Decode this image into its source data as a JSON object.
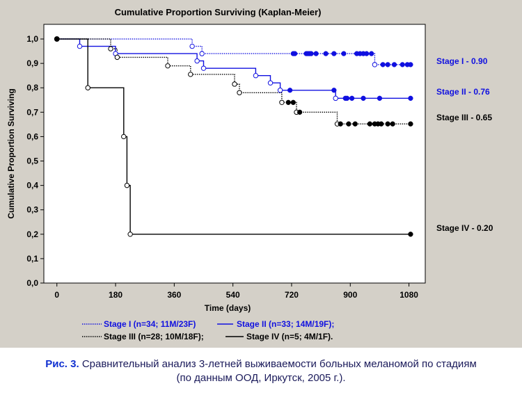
{
  "chart_data": {
    "type": "line",
    "subtype": "kaplan-meier step",
    "title": "Cumulative Proportion Surviving (Kaplan-Meier)",
    "xlabel": "Time (days)",
    "ylabel": "Cumulative Proportion Surviving",
    "xlim": [
      -40,
      1130
    ],
    "ylim": [
      0,
      1.06
    ],
    "x_ticks": [
      "0",
      "180",
      "360",
      "540",
      "720",
      "900",
      "1080"
    ],
    "x_tick_values": [
      0,
      180,
      360,
      540,
      720,
      900,
      1080
    ],
    "y_ticks": [
      "0,0",
      "0,1",
      "0,2",
      "0,3",
      "0,4",
      "0,5",
      "0,6",
      "0,7",
      "0,8",
      "0,9",
      "1,0"
    ],
    "y_tick_values": [
      0,
      0.1,
      0.2,
      0.3,
      0.4,
      0.5,
      0.6,
      0.7,
      0.8,
      0.9,
      1.0
    ],
    "grid": false,
    "legend_position": "bottom",
    "series": [
      {
        "name": "Stage I",
        "legend": "Stage I (n=34; 11M/23F)",
        "end_label": "Stage I - 0.90",
        "color": "#1010e0",
        "dash": "dotted",
        "curve": [
          [
            0,
            1.0
          ],
          [
            415,
            1.0
          ],
          [
            415,
            0.97
          ],
          [
            445,
            0.97
          ],
          [
            445,
            0.94
          ],
          [
            975,
            0.94
          ],
          [
            975,
            0.895
          ],
          [
            1085,
            0.895
          ]
        ],
        "events": [
          [
            415,
            0.97
          ],
          [
            445,
            0.94
          ],
          [
            975,
            0.895
          ]
        ],
        "censored": [
          [
            725,
            0.94
          ],
          [
            730,
            0.94
          ],
          [
            765,
            0.94
          ],
          [
            770,
            0.94
          ],
          [
            775,
            0.94
          ],
          [
            780,
            0.94
          ],
          [
            795,
            0.94
          ],
          [
            825,
            0.94
          ],
          [
            850,
            0.94
          ],
          [
            880,
            0.94
          ],
          [
            920,
            0.94
          ],
          [
            930,
            0.94
          ],
          [
            940,
            0.94
          ],
          [
            950,
            0.94
          ],
          [
            965,
            0.94
          ],
          [
            1000,
            0.895
          ],
          [
            1015,
            0.895
          ],
          [
            1035,
            0.895
          ],
          [
            1060,
            0.895
          ],
          [
            1075,
            0.895
          ],
          [
            1085,
            0.895
          ]
        ]
      },
      {
        "name": "Stage II",
        "legend": "Stage II (n=33; 14M/19F);",
        "end_label": "Stage II - 0.76",
        "color": "#1010e0",
        "dash": "solid",
        "curve": [
          [
            0,
            1.0
          ],
          [
            70,
            1.0
          ],
          [
            70,
            0.97
          ],
          [
            180,
            0.97
          ],
          [
            180,
            0.94
          ],
          [
            430,
            0.94
          ],
          [
            430,
            0.91
          ],
          [
            450,
            0.91
          ],
          [
            450,
            0.88
          ],
          [
            610,
            0.88
          ],
          [
            610,
            0.85
          ],
          [
            655,
            0.85
          ],
          [
            655,
            0.82
          ],
          [
            685,
            0.82
          ],
          [
            685,
            0.79
          ],
          [
            855,
            0.79
          ],
          [
            855,
            0.757
          ],
          [
            1085,
            0.757
          ]
        ],
        "events": [
          [
            70,
            0.97
          ],
          [
            180,
            0.94
          ],
          [
            430,
            0.91
          ],
          [
            450,
            0.88
          ],
          [
            610,
            0.85
          ],
          [
            655,
            0.82
          ],
          [
            685,
            0.79
          ],
          [
            855,
            0.757
          ]
        ],
        "censored": [
          [
            715,
            0.79
          ],
          [
            850,
            0.79
          ],
          [
            885,
            0.757
          ],
          [
            890,
            0.757
          ],
          [
            905,
            0.757
          ],
          [
            940,
            0.757
          ],
          [
            990,
            0.757
          ],
          [
            1085,
            0.757
          ]
        ]
      },
      {
        "name": "Stage III",
        "legend": "Stage III (n=28; 10M/18F);",
        "end_label": "Stage III - 0.65",
        "color": "#000000",
        "dash": "dotted",
        "curve": [
          [
            0,
            1.0
          ],
          [
            165,
            1.0
          ],
          [
            165,
            0.96
          ],
          [
            185,
            0.96
          ],
          [
            185,
            0.925
          ],
          [
            340,
            0.925
          ],
          [
            340,
            0.89
          ],
          [
            410,
            0.89
          ],
          [
            410,
            0.855
          ],
          [
            545,
            0.855
          ],
          [
            545,
            0.815
          ],
          [
            560,
            0.815
          ],
          [
            560,
            0.78
          ],
          [
            690,
            0.78
          ],
          [
            690,
            0.74
          ],
          [
            735,
            0.74
          ],
          [
            735,
            0.7
          ],
          [
            860,
            0.7
          ],
          [
            860,
            0.652
          ],
          [
            1085,
            0.652
          ]
        ],
        "events": [
          [
            165,
            0.96
          ],
          [
            185,
            0.925
          ],
          [
            340,
            0.89
          ],
          [
            410,
            0.855
          ],
          [
            545,
            0.815
          ],
          [
            560,
            0.78
          ],
          [
            690,
            0.74
          ],
          [
            735,
            0.7
          ],
          [
            860,
            0.652
          ]
        ],
        "censored": [
          [
            710,
            0.74
          ],
          [
            725,
            0.74
          ],
          [
            745,
            0.7
          ],
          [
            870,
            0.652
          ],
          [
            895,
            0.652
          ],
          [
            915,
            0.652
          ],
          [
            960,
            0.652
          ],
          [
            975,
            0.652
          ],
          [
            985,
            0.652
          ],
          [
            995,
            0.652
          ],
          [
            1015,
            0.652
          ],
          [
            1030,
            0.652
          ],
          [
            1085,
            0.652
          ]
        ]
      },
      {
        "name": "Stage IV",
        "legend": "Stage IV (n=5; 4M/1F).",
        "end_label": "Stage IV - 0.20",
        "color": "#000000",
        "dash": "solid",
        "curve": [
          [
            0,
            1.0
          ],
          [
            95,
            1.0
          ],
          [
            95,
            0.8
          ],
          [
            205,
            0.8
          ],
          [
            205,
            0.6
          ],
          [
            215,
            0.6
          ],
          [
            215,
            0.4
          ],
          [
            225,
            0.4
          ],
          [
            225,
            0.2
          ],
          [
            1085,
            0.2
          ]
        ],
        "events": [
          [
            95,
            0.8
          ],
          [
            205,
            0.6
          ],
          [
            215,
            0.4
          ],
          [
            225,
            0.2
          ]
        ],
        "censored": [
          [
            1085,
            0.2
          ]
        ],
        "start_point": [
          0,
          1.0
        ]
      }
    ]
  },
  "caption": {
    "label": "Рис. 3.",
    "text": "Сравнительный анализ 3-летней выживаемости больных меланомой по стадиям",
    "text2": "(по данным ООД, Иркутск, 2005 г.)."
  }
}
